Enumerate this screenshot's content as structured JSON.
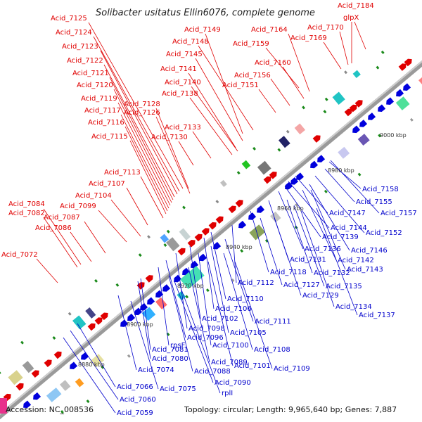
{
  "title": "Solibacter usitatus Ellin6076, complete genome",
  "footer": {
    "accession": "Accession: NC_008536",
    "summary": "Topology: circular; Length: 9,965,640 bp; Genes: 7,887"
  },
  "scale_ticks": [
    "8880 kbp",
    "8900 kbp",
    "8920 kbp",
    "8940 kbp",
    "8960 kbp",
    "8980 kbp",
    "9000 kbp"
  ],
  "labels_forward": [
    "Acid_7184",
    "glpX",
    "Acid_7170",
    "Acid_7169",
    "Acid_7164",
    "Acid_7159",
    "Acid_7160",
    "Acid_7156",
    "Acid_7151",
    "Acid_7149",
    "Acid_7148",
    "Acid_7145",
    "Acid_7141",
    "Acid_7140",
    "Acid_7138",
    "Acid_7133",
    "Acid_7130",
    "Acid_7128",
    "Acid_7126",
    "Acid_7125",
    "Acid_7124",
    "Acid_7123",
    "Acid_7122",
    "Acid_7121",
    "Acid_7120",
    "Acid_7119",
    "Acid_7117",
    "Acid_7116",
    "Acid_7115",
    "Acid_7113",
    "Acid_7107",
    "Acid_7104",
    "Acid_7099",
    "Acid_7087",
    "Acid_7086",
    "Acid_7084",
    "Acid_7082",
    "Acid_7072"
  ],
  "labels_reverse": [
    "Acid_7158",
    "Acid_7155",
    "Acid_7157",
    "Acid_7147",
    "Acid_7144",
    "Acid_7152",
    "Acid_7139",
    "Acid_7146",
    "Acid_7136",
    "Acid_7142",
    "Acid_7131",
    "Acid_7143",
    "Acid_7118",
    "Acid_7132",
    "Acid_7112",
    "Acid_7135",
    "Acid_7127",
    "Acid_7129",
    "Acid_7134",
    "Acid_7110",
    "Acid_7137",
    "Acid_7106",
    "Acid_7102",
    "Acid_7111",
    "Acid_7098",
    "Acid_7105",
    "Acid_7096",
    "rpsF",
    "Acid_7100",
    "Acid_7108",
    "Acid_7081",
    "Acid_7080",
    "Acid_7101",
    "Acid_7109",
    "Acid_7089",
    "Acid_7074",
    "Acid_7088",
    "Acid_7090",
    "rplI",
    "Acid_7066",
    "Acid_7075",
    "Acid_7060",
    "Acid_7059"
  ],
  "colors": {
    "forward_label": "#e00000",
    "reverse_label": "#0000cc",
    "backbone": "#888888",
    "forward_arrow": "#e00000",
    "reverse_arrow": "#0000dd",
    "marker_green": "#1a8a1a"
  }
}
